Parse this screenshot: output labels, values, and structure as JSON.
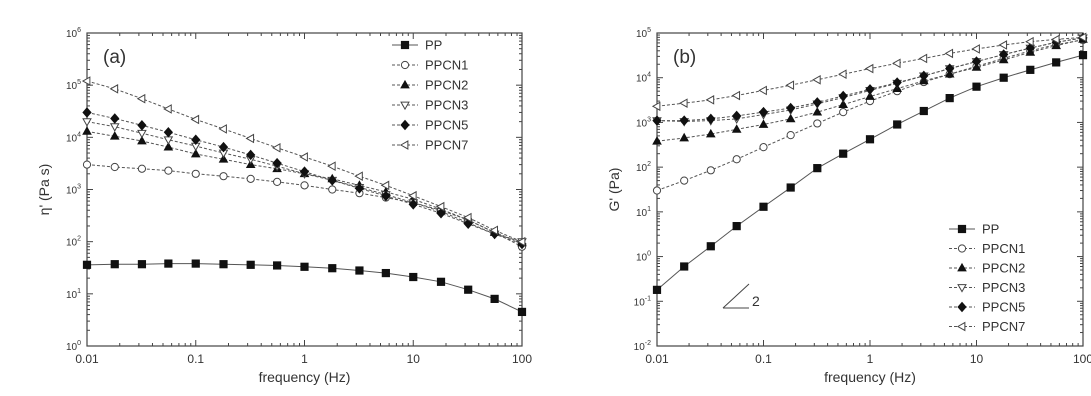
{
  "chart_data": [
    {
      "type": "line",
      "panel_label": "(a)",
      "xlabel": "frequency (Hz)",
      "ylabel": "η' (Pa s)",
      "xscale": "log",
      "yscale": "log",
      "xlim": [
        0.01,
        100
      ],
      "ylim": [
        1,
        1000000
      ],
      "xticks": [
        0.01,
        0.1,
        1,
        10,
        100
      ],
      "xticklabels": [
        "0.01",
        "0.1",
        "1",
        "10",
        "100"
      ],
      "yticks": [
        1,
        10,
        100,
        1000,
        10000,
        100000,
        1000000
      ],
      "yticklabels": [
        [
          "10",
          "0"
        ],
        [
          "10",
          "1"
        ],
        [
          "10",
          "2"
        ],
        [
          "10",
          "3"
        ],
        [
          "10",
          "4"
        ],
        [
          "10",
          "5"
        ],
        [
          "10",
          "6"
        ]
      ],
      "legend_position": "top-right",
      "x": [
        0.01,
        0.018,
        0.032,
        0.056,
        0.1,
        0.18,
        0.32,
        0.56,
        1,
        1.8,
        3.2,
        5.6,
        10,
        18,
        32,
        56,
        100
      ],
      "series": [
        {
          "name": "PP",
          "marker": "square-filled",
          "values": [
            36,
            37,
            37,
            38,
            38,
            37,
            36,
            35,
            33,
            31,
            28,
            25,
            21,
            17,
            12,
            8,
            4.5
          ]
        },
        {
          "name": "PPCN1",
          "marker": "circle-open",
          "values": [
            3000,
            2700,
            2500,
            2300,
            2000,
            1800,
            1600,
            1400,
            1200,
            1000,
            850,
            700,
            560,
            400,
            260,
            150,
            80
          ]
        },
        {
          "name": "PPCN2",
          "marker": "triangle-up-filled",
          "values": [
            13000,
            10500,
            8500,
            6500,
            4800,
            3800,
            3000,
            2500,
            2000,
            1600,
            1200,
            900,
            650,
            420,
            260,
            150,
            95
          ]
        },
        {
          "name": "PPCN3",
          "marker": "triangle-down-open",
          "values": [
            20000,
            16000,
            12000,
            9000,
            6800,
            5000,
            3800,
            2800,
            2000,
            1500,
            1100,
            800,
            560,
            380,
            230,
            140,
            100
          ]
        },
        {
          "name": "PPCN5",
          "marker": "diamond-filled",
          "values": [
            30000,
            23000,
            17000,
            12500,
            9000,
            6500,
            4600,
            3200,
            2200,
            1500,
            1050,
            750,
            520,
            350,
            220,
            140,
            90
          ]
        },
        {
          "name": "PPCN7",
          "marker": "triangle-left-open",
          "values": [
            120000,
            85000,
            55000,
            35000,
            22000,
            14500,
            9500,
            6300,
            4200,
            2800,
            1800,
            1200,
            760,
            470,
            290,
            165,
            100
          ]
        }
      ]
    },
    {
      "type": "line",
      "panel_label": "(b)",
      "xlabel": "frequency (Hz)",
      "ylabel": "G' (Pa)",
      "xscale": "log",
      "yscale": "log",
      "xlim": [
        0.01,
        100
      ],
      "ylim": [
        0.01,
        100000
      ],
      "xticks": [
        0.01,
        0.1,
        1,
        10,
        100
      ],
      "xticklabels": [
        "0.01",
        "0.1",
        "1",
        "10",
        "100"
      ],
      "yticks": [
        0.01,
        0.1,
        1,
        10,
        100,
        1000,
        10000,
        100000
      ],
      "yticklabels": [
        [
          "10",
          "-2"
        ],
        [
          "10",
          "-1"
        ],
        [
          "10",
          "0"
        ],
        [
          "10",
          "1"
        ],
        [
          "10",
          "2"
        ],
        [
          "10",
          "3"
        ],
        [
          "10",
          "4"
        ],
        [
          "10",
          "5"
        ]
      ],
      "legend_position": "bottom-right",
      "annotation": "2",
      "x": [
        0.01,
        0.018,
        0.032,
        0.056,
        0.1,
        0.18,
        0.32,
        0.56,
        1,
        1.8,
        3.2,
        5.6,
        10,
        18,
        32,
        56,
        100
      ],
      "series": [
        {
          "name": "PP",
          "marker": "square-filled",
          "values": [
            0.18,
            0.6,
            1.7,
            4.8,
            13,
            35,
            95,
            200,
            420,
            900,
            1800,
            3500,
            6300,
            10000,
            15000,
            22000,
            32000
          ]
        },
        {
          "name": "PPCN1",
          "marker": "circle-open",
          "values": [
            30,
            50,
            85,
            150,
            280,
            520,
            950,
            1700,
            3000,
            5000,
            8000,
            12000,
            18000,
            27000,
            40000,
            55000,
            70000
          ]
        },
        {
          "name": "PPCN2",
          "marker": "triangle-up-filled",
          "values": [
            380,
            450,
            550,
            700,
            900,
            1200,
            1700,
            2500,
            3800,
            5700,
            8500,
            12000,
            17000,
            25000,
            37000,
            52000,
            72000
          ]
        },
        {
          "name": "PPCN3",
          "marker": "triangle-down-open",
          "values": [
            1100,
            1050,
            1100,
            1200,
            1500,
            1900,
            2600,
            3600,
            5200,
            7500,
            11000,
            16000,
            23000,
            33000,
            46000,
            62000,
            78000
          ]
        },
        {
          "name": "PPCN5",
          "marker": "diamond-filled",
          "values": [
            1100,
            1100,
            1200,
            1400,
            1700,
            2100,
            2800,
            3900,
            5500,
            7800,
            11000,
            16000,
            23000,
            33000,
            46000,
            62000,
            78000
          ]
        },
        {
          "name": "PPCN7",
          "marker": "triangle-left-open",
          "values": [
            2300,
            2700,
            3200,
            4000,
            5200,
            6800,
            9000,
            12000,
            16000,
            21000,
            27000,
            35000,
            44000,
            54000,
            64000,
            72000,
            80000
          ]
        }
      ]
    }
  ]
}
